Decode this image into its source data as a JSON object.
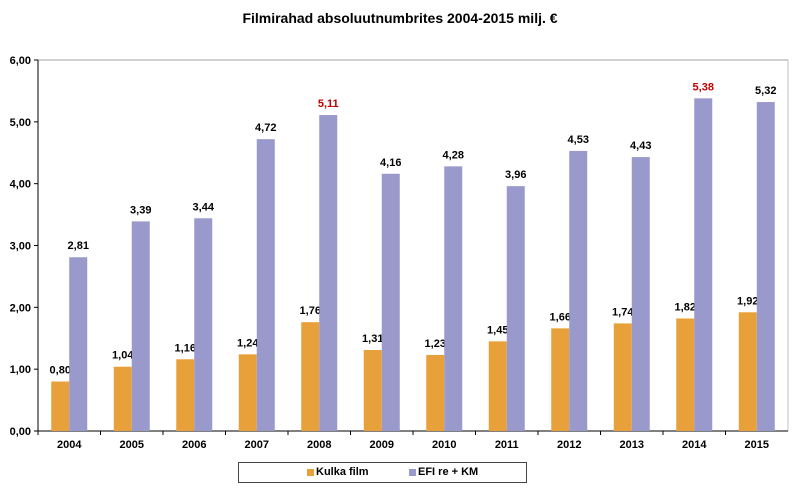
{
  "chart_data": {
    "type": "bar",
    "title": "Filmirahad absoluutnumbrites 2004-2015 milj. €",
    "xlabel": "",
    "ylabel": "",
    "ylim": [
      0,
      6
    ],
    "yticks": [
      "0,00",
      "1,00",
      "2,00",
      "3,00",
      "4,00",
      "5,00",
      "6,00"
    ],
    "categories": [
      "2004",
      "2005",
      "2006",
      "2007",
      "2008",
      "2009",
      "2010",
      "2011",
      "2012",
      "2013",
      "2014",
      "2015"
    ],
    "series": [
      {
        "name": "Kulka film",
        "color": "#e8a03a",
        "values": [
          0.8,
          1.04,
          1.16,
          1.24,
          1.76,
          1.31,
          1.23,
          1.45,
          1.66,
          1.74,
          1.82,
          1.92
        ],
        "labels": [
          "0,80",
          "1,04",
          "1,16",
          "1,24",
          "1,76",
          "1,31",
          "1,23",
          "1,45",
          "1,66",
          "1,74",
          "1,82",
          "1,92"
        ]
      },
      {
        "name": "EFI re + KM",
        "color": "#9999cc",
        "values": [
          2.81,
          3.39,
          3.44,
          4.72,
          5.11,
          4.16,
          4.28,
          3.96,
          4.53,
          4.43,
          5.38,
          5.32
        ],
        "labels": [
          "2,81",
          "3,39",
          "3,44",
          "4,72",
          "5,11",
          "4,16",
          "4,28",
          "3,96",
          "4,53",
          "4,43",
          "5,38",
          "5,32"
        ],
        "highlight": [
          4,
          10
        ],
        "highlight_color": "#c00000"
      }
    ],
    "legend_position": "bottom",
    "grid": false
  }
}
